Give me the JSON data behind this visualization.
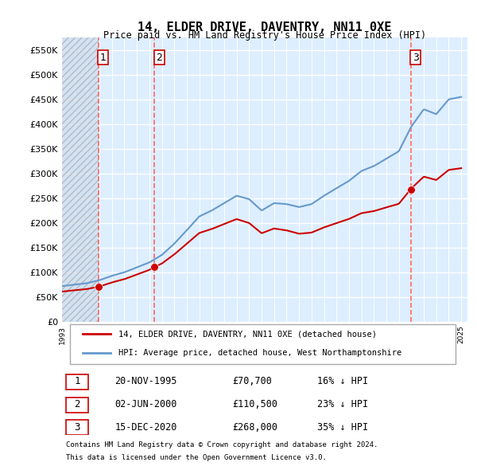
{
  "title": "14, ELDER DRIVE, DAVENTRY, NN11 0XE",
  "subtitle": "Price paid vs. HM Land Registry's House Price Index (HPI)",
  "ylabel_ticks": [
    0,
    50000,
    100000,
    150000,
    200000,
    250000,
    300000,
    350000,
    400000,
    450000,
    500000,
    550000
  ],
  "ylim": [
    0,
    575000
  ],
  "xlim_start": 1993.0,
  "xlim_end": 2025.5,
  "transactions": [
    {
      "num": 1,
      "date": "20-NOV-1995",
      "price": 70700,
      "year": 1995.9,
      "pct": "16%",
      "dir": "↓"
    },
    {
      "num": 2,
      "date": "02-JUN-2000",
      "price": 110500,
      "year": 2000.4,
      "pct": "23%",
      "dir": "↓"
    },
    {
      "num": 3,
      "date": "15-DEC-2020",
      "price": 268000,
      "year": 2020.95,
      "pct": "35%",
      "dir": "↓"
    }
  ],
  "legend_line1": "14, ELDER DRIVE, DAVENTRY, NN11 0XE (detached house)",
  "legend_line2": "HPI: Average price, detached house, West Northamptonshire",
  "footer1": "Contains HM Land Registry data © Crown copyright and database right 2024.",
  "footer2": "This data is licensed under the Open Government Licence v3.0.",
  "line_color_red": "#cc0000",
  "line_color_blue": "#6699cc",
  "hatch_color": "#aaaaaa",
  "bg_color": "#ddeeff",
  "grid_color": "#ffffff",
  "table_border_color": "#cc0000"
}
